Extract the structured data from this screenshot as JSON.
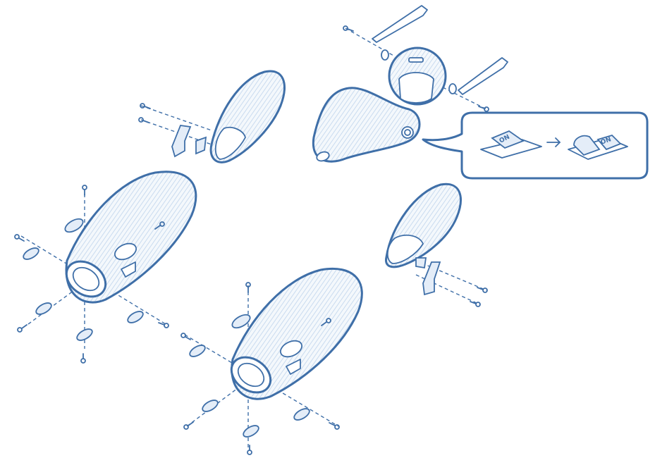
{
  "illustration": {
    "switch_label_before": "ON",
    "switch_label_after": "ON",
    "colors": {
      "stroke": "#3f6fa8",
      "fill": "#ffffff",
      "shade": "#e4edf8",
      "hatch": "#c9dbef"
    }
  }
}
